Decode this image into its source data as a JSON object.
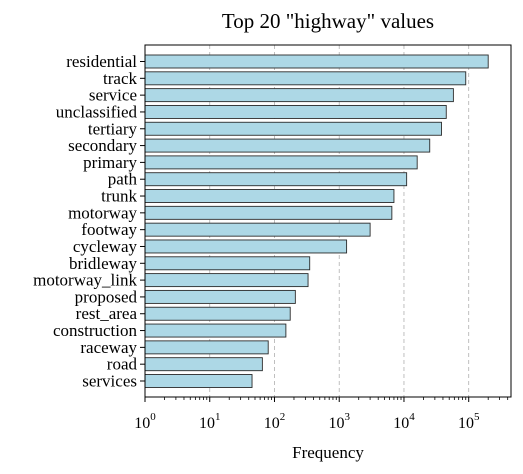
{
  "chart_data": {
    "type": "bar",
    "orientation": "horizontal",
    "title": "Top 20 \"highway\" values",
    "xlabel": "Frequency",
    "ylabel": "",
    "xscale": "log",
    "xlim": [
      1,
      450000
    ],
    "xticks": [
      1,
      10,
      100,
      1000,
      10000,
      100000
    ],
    "xtick_labels": [
      {
        "base": "10",
        "exp": "0"
      },
      {
        "base": "10",
        "exp": "1"
      },
      {
        "base": "10",
        "exp": "2"
      },
      {
        "base": "10",
        "exp": "3"
      },
      {
        "base": "10",
        "exp": "4"
      },
      {
        "base": "10",
        "exp": "5"
      }
    ],
    "grid": "x-major dashed",
    "categories": [
      "residential",
      "track",
      "service",
      "unclassified",
      "tertiary",
      "secondary",
      "primary",
      "path",
      "trunk",
      "motorway",
      "footway",
      "cycleway",
      "bridleway",
      "motorway_link",
      "proposed",
      "rest_area",
      "construction",
      "raceway",
      "road",
      "services"
    ],
    "values": [
      200000,
      90000,
      58000,
      45000,
      38000,
      25000,
      16000,
      11000,
      7000,
      6500,
      3000,
      1300,
      350,
      330,
      210,
      175,
      150,
      80,
      65,
      45
    ],
    "colors": {
      "bar": "#add8e6",
      "edge": "#2b2b2b",
      "grid": "#b0b0b0"
    }
  }
}
